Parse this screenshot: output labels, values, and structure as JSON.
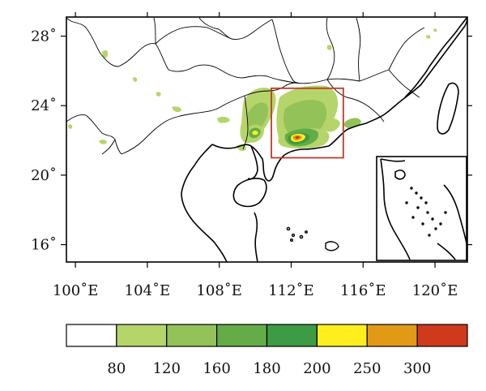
{
  "map": {
    "lon_labels": [
      "100˚E",
      "104˚E",
      "108˚E",
      "112˚E",
      "116˚E",
      "120˚E"
    ],
    "lat_labels": [
      "28˚",
      "24˚",
      "20˚",
      "16˚"
    ],
    "lon_range": [
      99.5,
      121.8
    ],
    "lat_range": [
      15.0,
      29.1
    ],
    "highlight_box": {
      "lon": [
        110.9,
        114.9
      ],
      "lat": [
        21.0,
        25.0
      ],
      "color": "#c0392b"
    },
    "inset": "South China Sea islands"
  },
  "colorbar": {
    "colors": [
      "#ffffff",
      "#b5d56a",
      "#93c258",
      "#63ac47",
      "#3d9b44",
      "#ffee1e",
      "#e29a16",
      "#cf3a1c"
    ],
    "labels": [
      "80",
      "120",
      "160",
      "180",
      "200",
      "250",
      "300"
    ]
  }
}
